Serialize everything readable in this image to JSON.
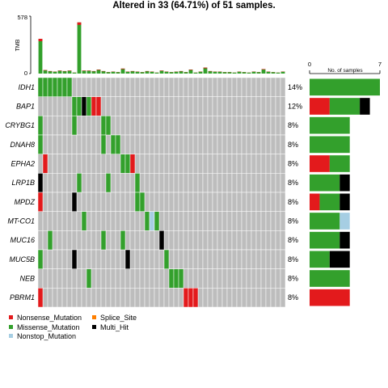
{
  "title": "Altered in 33 (64.71%) of 51 samples.",
  "colors": {
    "Nonsense_Mutation": "#e31a1c",
    "Missense_Mutation": "#33a02c",
    "Nonstop_Mutation": "#a6cee3",
    "Splice_Site": "#ff7f00",
    "Multi_Hit": "#000000",
    "wildtype": "#bdbdbd"
  },
  "chart_data": {
    "type": "heatmap",
    "title": "Altered in 33 (64.71%) of 51 samples.",
    "n_samples": 51,
    "genes": [
      "IDH1",
      "BAP1",
      "CRYBG1",
      "DNAH8",
      "EPHA2",
      "LRP1B",
      "MPDZ",
      "MT-CO1",
      "MUC16",
      "MUC5B",
      "NEB",
      "PBRM1"
    ],
    "percent_labels": [
      "14%",
      "12%",
      "8%",
      "8%",
      "8%",
      "8%",
      "8%",
      "8%",
      "8%",
      "8%",
      "8%",
      "8%"
    ],
    "tmb": {
      "ylabel": "TMB",
      "ylim": [
        0,
        578
      ],
      "ticks": [
        "0",
        "578"
      ],
      "values": [
        350,
        35,
        25,
        20,
        30,
        25,
        30,
        10,
        515,
        30,
        30,
        25,
        40,
        25,
        15,
        20,
        15,
        50,
        20,
        25,
        20,
        15,
        25,
        20,
        10,
        30,
        20,
        15,
        20,
        25,
        15,
        40,
        10,
        20,
        60,
        25,
        20,
        20,
        15,
        15,
        10,
        20,
        15,
        10,
        20,
        15,
        45,
        20,
        15,
        10,
        20
      ]
    },
    "gene_bars": {
      "xlabel": "No. of samples",
      "xlim": [
        0,
        7
      ],
      "ticks": [
        "0",
        "7"
      ],
      "counts": [
        {
          "Missense_Mutation": 7
        },
        {
          "Nonsense_Mutation": 2,
          "Missense_Mutation": 3,
          "Multi_Hit": 1
        },
        {
          "Missense_Mutation": 4
        },
        {
          "Missense_Mutation": 4
        },
        {
          "Nonsense_Mutation": 2,
          "Missense_Mutation": 2
        },
        {
          "Missense_Mutation": 3,
          "Multi_Hit": 1
        },
        {
          "Nonsense_Mutation": 1,
          "Missense_Mutation": 2,
          "Multi_Hit": 1
        },
        {
          "Missense_Mutation": 3,
          "Nonstop_Mutation": 1
        },
        {
          "Missense_Mutation": 3,
          "Multi_Hit": 1
        },
        {
          "Missense_Mutation": 2,
          "Multi_Hit": 2
        },
        {
          "Missense_Mutation": 4
        },
        {
          "Nonsense_Mutation": 4
        }
      ]
    },
    "alterations": [
      {
        "gene": 0,
        "sample": 0,
        "type": "Missense_Mutation"
      },
      {
        "gene": 0,
        "sample": 1,
        "type": "Missense_Mutation"
      },
      {
        "gene": 0,
        "sample": 2,
        "type": "Missense_Mutation"
      },
      {
        "gene": 0,
        "sample": 3,
        "type": "Missense_Mutation"
      },
      {
        "gene": 0,
        "sample": 4,
        "type": "Missense_Mutation"
      },
      {
        "gene": 0,
        "sample": 5,
        "type": "Missense_Mutation"
      },
      {
        "gene": 0,
        "sample": 6,
        "type": "Missense_Mutation"
      },
      {
        "gene": 1,
        "sample": 7,
        "type": "Missense_Mutation"
      },
      {
        "gene": 1,
        "sample": 8,
        "type": "Missense_Mutation"
      },
      {
        "gene": 1,
        "sample": 9,
        "type": "Multi_Hit"
      },
      {
        "gene": 1,
        "sample": 10,
        "type": "Missense_Mutation"
      },
      {
        "gene": 1,
        "sample": 11,
        "type": "Nonsense_Mutation"
      },
      {
        "gene": 1,
        "sample": 12,
        "type": "Nonsense_Mutation"
      },
      {
        "gene": 2,
        "sample": 0,
        "type": "Missense_Mutation"
      },
      {
        "gene": 2,
        "sample": 7,
        "type": "Missense_Mutation"
      },
      {
        "gene": 2,
        "sample": 13,
        "type": "Missense_Mutation"
      },
      {
        "gene": 2,
        "sample": 14,
        "type": "Missense_Mutation"
      },
      {
        "gene": 3,
        "sample": 0,
        "type": "Missense_Mutation"
      },
      {
        "gene": 3,
        "sample": 13,
        "type": "Missense_Mutation"
      },
      {
        "gene": 3,
        "sample": 15,
        "type": "Missense_Mutation"
      },
      {
        "gene": 3,
        "sample": 16,
        "type": "Missense_Mutation"
      },
      {
        "gene": 4,
        "sample": 1,
        "type": "Nonsense_Mutation"
      },
      {
        "gene": 4,
        "sample": 17,
        "type": "Missense_Mutation"
      },
      {
        "gene": 4,
        "sample": 18,
        "type": "Missense_Mutation"
      },
      {
        "gene": 4,
        "sample": 19,
        "type": "Nonsense_Mutation"
      },
      {
        "gene": 5,
        "sample": 0,
        "type": "Multi_Hit"
      },
      {
        "gene": 5,
        "sample": 8,
        "type": "Missense_Mutation"
      },
      {
        "gene": 5,
        "sample": 14,
        "type": "Missense_Mutation"
      },
      {
        "gene": 5,
        "sample": 20,
        "type": "Missense_Mutation"
      },
      {
        "gene": 6,
        "sample": 0,
        "type": "Nonsense_Mutation"
      },
      {
        "gene": 6,
        "sample": 7,
        "type": "Multi_Hit"
      },
      {
        "gene": 6,
        "sample": 20,
        "type": "Missense_Mutation"
      },
      {
        "gene": 6,
        "sample": 21,
        "type": "Missense_Mutation"
      },
      {
        "gene": 7,
        "sample": 9,
        "type": "Missense_Mutation"
      },
      {
        "gene": 7,
        "sample": 22,
        "type": "Missense_Mutation"
      },
      {
        "gene": 7,
        "sample": 23,
        "type": "Nonstop_Mutation"
      },
      {
        "gene": 7,
        "sample": 24,
        "type": "Missense_Mutation"
      },
      {
        "gene": 8,
        "sample": 2,
        "type": "Missense_Mutation"
      },
      {
        "gene": 8,
        "sample": 13,
        "type": "Missense_Mutation"
      },
      {
        "gene": 8,
        "sample": 17,
        "type": "Missense_Mutation"
      },
      {
        "gene": 8,
        "sample": 25,
        "type": "Multi_Hit"
      },
      {
        "gene": 9,
        "sample": 0,
        "type": "Missense_Mutation"
      },
      {
        "gene": 9,
        "sample": 7,
        "type": "Multi_Hit"
      },
      {
        "gene": 9,
        "sample": 18,
        "type": "Multi_Hit"
      },
      {
        "gene": 9,
        "sample": 26,
        "type": "Missense_Mutation"
      },
      {
        "gene": 10,
        "sample": 10,
        "type": "Missense_Mutation"
      },
      {
        "gene": 10,
        "sample": 27,
        "type": "Missense_Mutation"
      },
      {
        "gene": 10,
        "sample": 28,
        "type": "Missense_Mutation"
      },
      {
        "gene": 10,
        "sample": 29,
        "type": "Missense_Mutation"
      },
      {
        "gene": 11,
        "sample": 0,
        "type": "Nonsense_Mutation"
      },
      {
        "gene": 11,
        "sample": 30,
        "type": "Nonsense_Mutation"
      },
      {
        "gene": 11,
        "sample": 31,
        "type": "Nonsense_Mutation"
      },
      {
        "gene": 11,
        "sample": 32,
        "type": "Nonsense_Mutation"
      }
    ],
    "legend": [
      {
        "label": "Nonsense_Mutation",
        "key": "Nonsense_Mutation"
      },
      {
        "label": "Splice_Site",
        "key": "Splice_Site"
      },
      {
        "label": "Missense_Mutation",
        "key": "Missense_Mutation"
      },
      {
        "label": "Multi_Hit",
        "key": "Multi_Hit"
      },
      {
        "label": "Nonstop_Mutation",
        "key": "Nonstop_Mutation"
      }
    ]
  }
}
